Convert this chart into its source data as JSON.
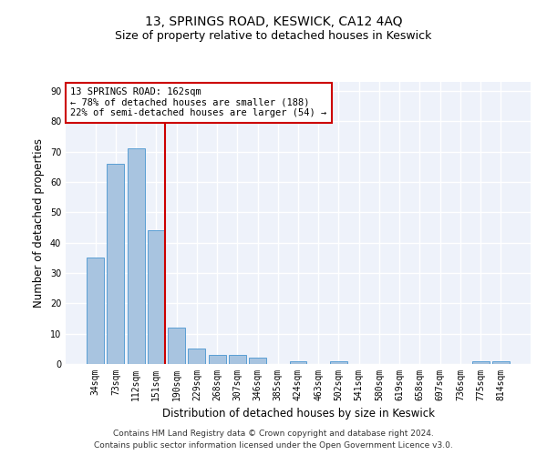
{
  "title": "13, SPRINGS ROAD, KESWICK, CA12 4AQ",
  "subtitle": "Size of property relative to detached houses in Keswick",
  "xlabel": "Distribution of detached houses by size in Keswick",
  "ylabel": "Number of detached properties",
  "categories": [
    "34sqm",
    "73sqm",
    "112sqm",
    "151sqm",
    "190sqm",
    "229sqm",
    "268sqm",
    "307sqm",
    "346sqm",
    "385sqm",
    "424sqm",
    "463sqm",
    "502sqm",
    "541sqm",
    "580sqm",
    "619sqm",
    "658sqm",
    "697sqm",
    "736sqm",
    "775sqm",
    "814sqm"
  ],
  "values": [
    35,
    66,
    71,
    44,
    12,
    5,
    3,
    3,
    2,
    0,
    1,
    0,
    1,
    0,
    0,
    0,
    0,
    0,
    0,
    1,
    1
  ],
  "bar_color": "#a8c4e0",
  "bar_edge_color": "#5a9fd4",
  "annotation_text": "13 SPRINGS ROAD: 162sqm\n← 78% of detached houses are smaller (188)\n22% of semi-detached houses are larger (54) →",
  "annotation_box_color": "#ffffff",
  "annotation_box_edge_color": "#cc0000",
  "marker_line_color": "#cc0000",
  "ylim": [
    0,
    93
  ],
  "yticks": [
    0,
    10,
    20,
    30,
    40,
    50,
    60,
    70,
    80,
    90
  ],
  "background_color": "#eef2fa",
  "grid_color": "#ffffff",
  "footer_line1": "Contains HM Land Registry data © Crown copyright and database right 2024.",
  "footer_line2": "Contains public sector information licensed under the Open Government Licence v3.0.",
  "title_fontsize": 10,
  "subtitle_fontsize": 9,
  "xlabel_fontsize": 8.5,
  "ylabel_fontsize": 8.5,
  "tick_fontsize": 7,
  "annotation_fontsize": 7.5,
  "footer_fontsize": 6.5
}
